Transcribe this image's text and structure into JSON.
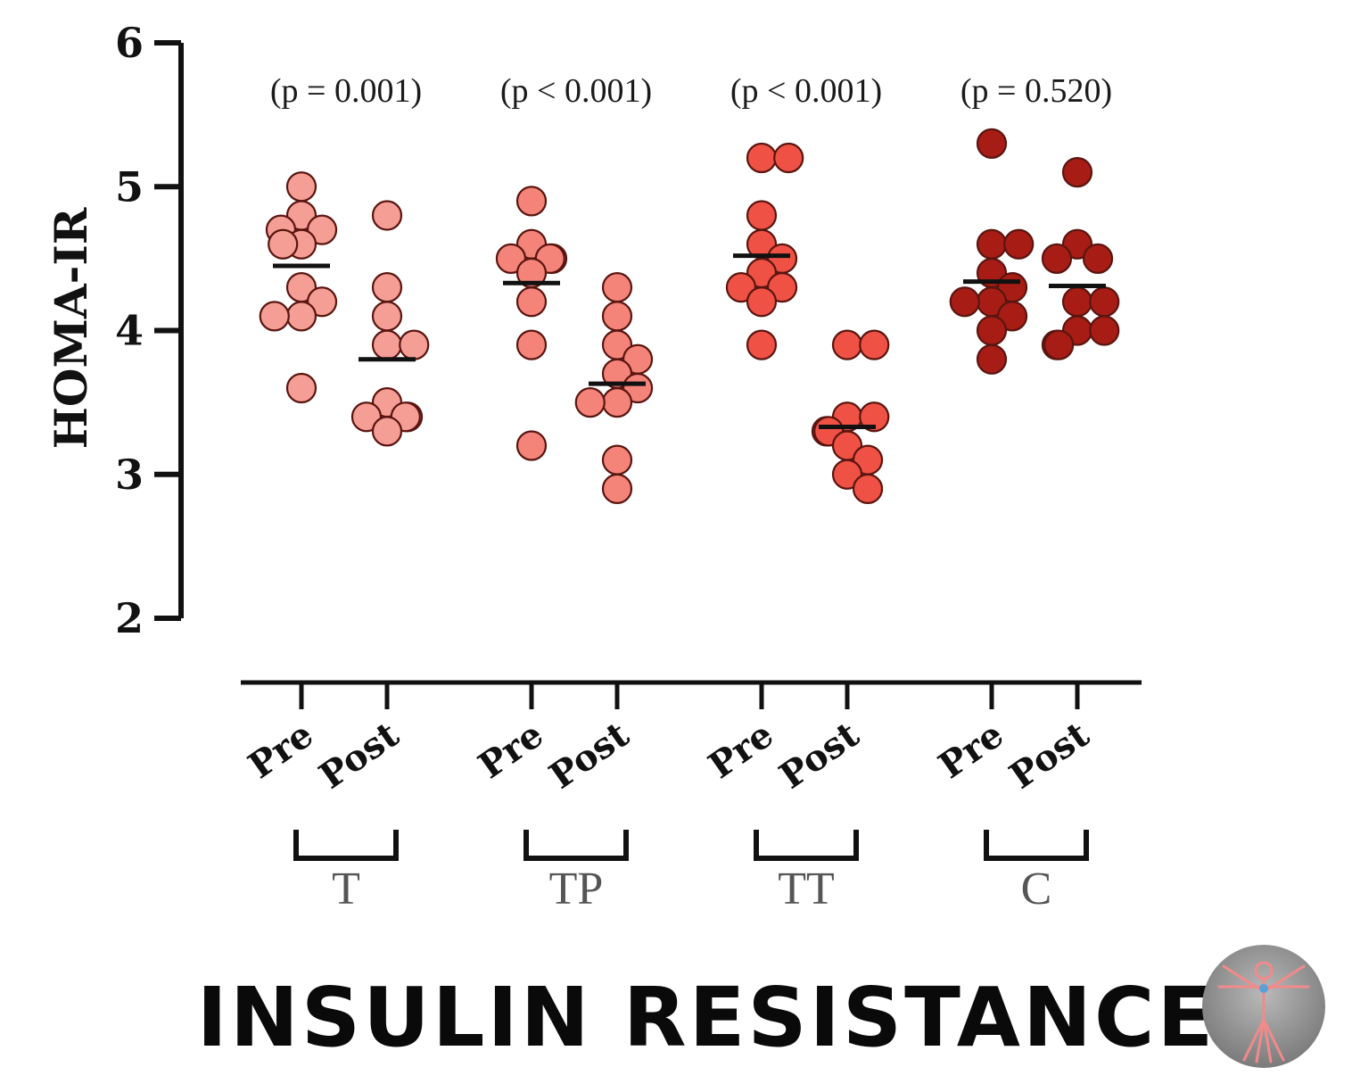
{
  "chart_data": {
    "type": "scatter",
    "subtype": "dot-plot-with-mean",
    "ylabel": "HOMA-IR",
    "ylim": [
      2,
      6
    ],
    "yticks": [
      "2",
      "3",
      "4",
      "5",
      "6"
    ],
    "title": "INSULIN RESISTANCE",
    "groups": [
      {
        "name": "T",
        "p_label": "(p = 0.001)",
        "color": "#f59e95",
        "conditions": [
          {
            "label": "Pre",
            "mean": 4.45,
            "values": [
              5.0,
              4.8,
              4.7,
              4.7,
              4.6,
              4.6,
              4.3,
              4.2,
              4.1,
              4.1,
              3.6
            ]
          },
          {
            "label": "Post",
            "mean": 3.8,
            "values": [
              4.8,
              4.3,
              4.1,
              3.9,
              3.9,
              3.5,
              3.4,
              3.4,
              3.4,
              3.3
            ]
          }
        ]
      },
      {
        "name": "TP",
        "p_label": "(p < 0.001)",
        "color": "#f4847a",
        "conditions": [
          {
            "label": "Pre",
            "mean": 4.33,
            "values": [
              4.9,
              4.6,
              4.5,
              4.5,
              4.5,
              4.4,
              4.2,
              3.9,
              3.2
            ]
          },
          {
            "label": "Post",
            "mean": 3.63,
            "values": [
              4.3,
              4.1,
              3.9,
              3.8,
              3.7,
              3.6,
              3.5,
              3.5,
              3.1,
              2.9
            ]
          }
        ]
      },
      {
        "name": "TT",
        "p_label": "(p < 0.001)",
        "color": "#ef5244",
        "conditions": [
          {
            "label": "Pre",
            "mean": 4.52,
            "values": [
              5.2,
              5.2,
              4.8,
              4.6,
              4.5,
              4.4,
              4.3,
              4.3,
              4.2,
              3.9
            ]
          },
          {
            "label": "Post",
            "mean": 3.33,
            "values": [
              3.9,
              3.9,
              3.4,
              3.4,
              3.3,
              3.3,
              3.2,
              3.1,
              3.0,
              2.9
            ]
          }
        ]
      },
      {
        "name": "C",
        "p_label": "(p = 0.520)",
        "color": "#a71d15",
        "conditions": [
          {
            "label": "Pre",
            "mean": 4.34,
            "values": [
              5.3,
              4.6,
              4.6,
              4.4,
              4.3,
              4.2,
              4.2,
              4.1,
              4.0,
              3.8
            ]
          },
          {
            "label": "Post",
            "mean": 4.31,
            "values": [
              5.1,
              4.6,
              4.5,
              4.5,
              4.2,
              4.2,
              4.0,
              4.0,
              3.9,
              3.9
            ]
          }
        ]
      }
    ]
  },
  "logo": {
    "icon": "vitruvian-man-icon"
  }
}
